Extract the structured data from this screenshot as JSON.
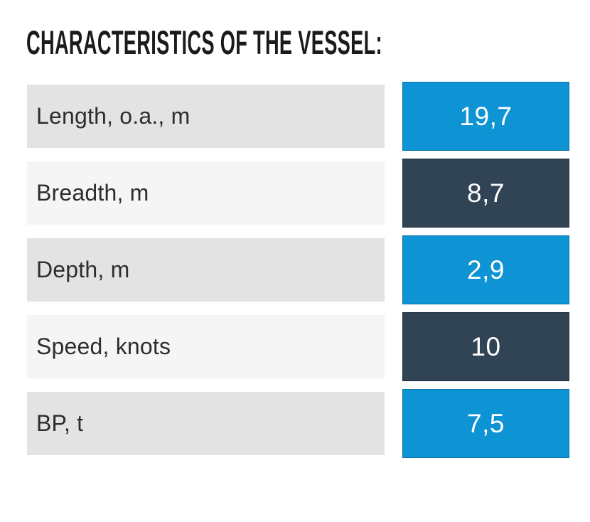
{
  "header": {
    "title": "CHARACTERISTICS OF THE VESSEL:"
  },
  "table": {
    "rows": [
      {
        "label": "Length, o.a., m",
        "value": "19,7",
        "value_style": "blue"
      },
      {
        "label": "Breadth, m",
        "value": "8,7",
        "value_style": "dark"
      },
      {
        "label": "Depth, m",
        "value": "2,9",
        "value_style": "blue"
      },
      {
        "label": "Speed, knots",
        "value": "10",
        "value_style": "dark"
      },
      {
        "label": "BP, t",
        "value": "7,5",
        "value_style": "blue"
      }
    ]
  },
  "colors": {
    "accent_blue": "#0e93d4",
    "accent_dark_slate": "#314456",
    "row_gray": "#e3e3e3",
    "row_light_gray": "#f5f5f5",
    "value_text": "#ffffff",
    "label_text": "#2d2d2f",
    "title_text": "#1b1b1d",
    "page_background": "#ffffff"
  }
}
